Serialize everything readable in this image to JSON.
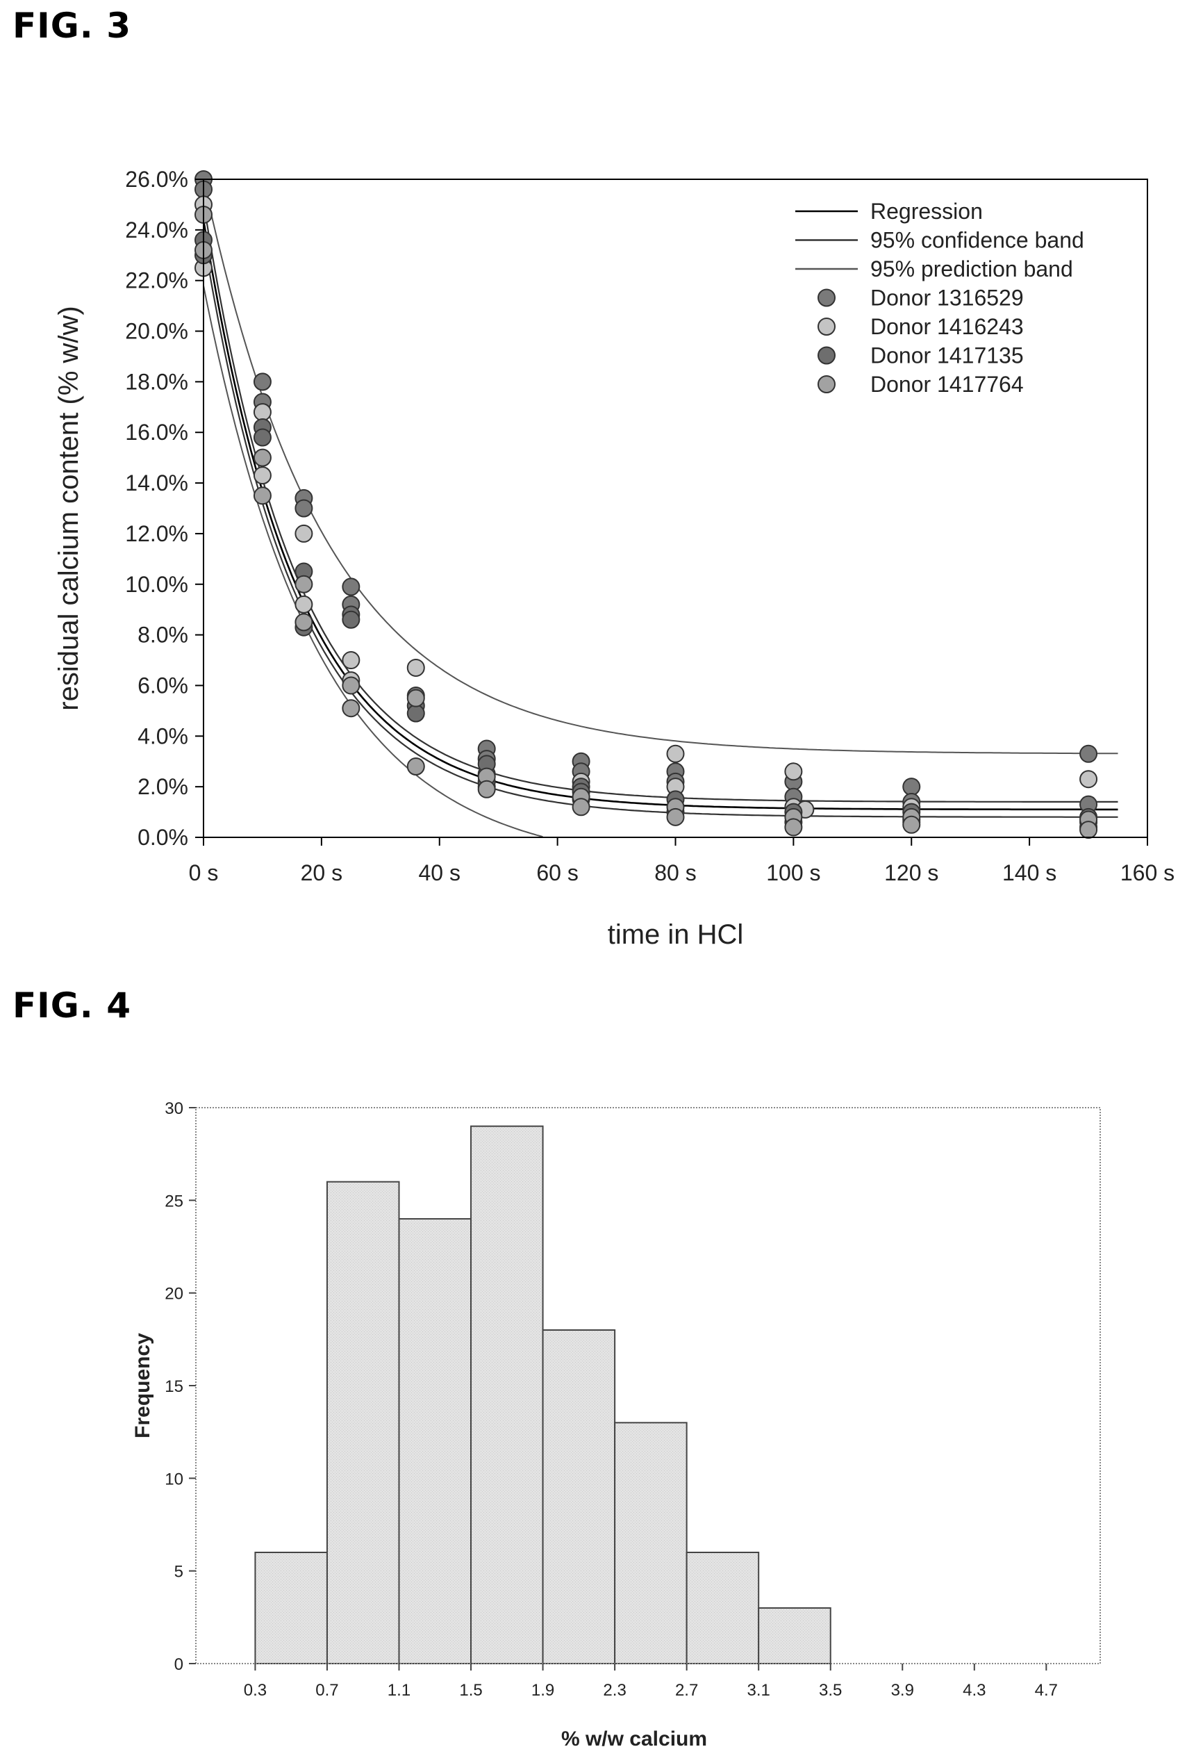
{
  "figures": {
    "fig3_label": "FIG. 3",
    "fig4_label": "FIG. 4"
  },
  "chart_data": [
    {
      "type": "scatter",
      "xlabel": "time in HCl",
      "ylabel": "residual calcium content (% w/w)",
      "xlim": [
        0,
        160
      ],
      "ylim": [
        0,
        26
      ],
      "x_ticks": [
        0,
        20,
        40,
        60,
        80,
        100,
        120,
        140,
        160
      ],
      "x_tick_labels": [
        "0 s",
        "20 s",
        "40 s",
        "60 s",
        "80 s",
        "100 s",
        "120 s",
        "140 s",
        "160 s"
      ],
      "y_ticks": [
        0,
        2,
        4,
        6,
        8,
        10,
        12,
        14,
        16,
        18,
        20,
        22,
        24,
        26
      ],
      "y_tick_labels": [
        "0.0%",
        "2.0%",
        "4.0%",
        "6.0%",
        "8.0%",
        "10.0%",
        "12.0%",
        "14.0%",
        "16.0%",
        "18.0%",
        "20.0%",
        "22.0%",
        "24.0%",
        "26.0%"
      ],
      "grid": false,
      "legend_position": "top-right",
      "legend_lines": [
        {
          "name": "Regression",
          "color": "#000000"
        },
        {
          "name": "95% confidence band",
          "color": "#333333"
        },
        {
          "name": "95% prediction band",
          "color": "#555555"
        }
      ],
      "curves": {
        "regression": {
          "a": 23.3,
          "k": 0.0617,
          "c": 1.1
        },
        "confidence_upper": {
          "a": 23.7,
          "k": 0.062,
          "c": 1.4
        },
        "confidence_lower": {
          "a": 22.9,
          "k": 0.0613,
          "c": 0.8
        },
        "prediction_upper": {
          "a": 22.7,
          "k": 0.0475,
          "c": 3.3
        },
        "prediction_lower": {
          "a": 23.0,
          "k": 0.051,
          "c": -1.2
        },
        "x_max": 155
      },
      "series": [
        {
          "name": "Donor 1316529",
          "color": "#7a7a7a",
          "points": [
            [
              0,
              26.0
            ],
            [
              0,
              25.6
            ],
            [
              10,
              18.0
            ],
            [
              10,
              17.2
            ],
            [
              17,
              13.4
            ],
            [
              17,
              13.0
            ],
            [
              25,
              9.9
            ],
            [
              25,
              9.2
            ],
            [
              36,
              5.6
            ],
            [
              48,
              3.5
            ],
            [
              48,
              3.1
            ],
            [
              64,
              3.0
            ],
            [
              64,
              2.6
            ],
            [
              80,
              2.6
            ],
            [
              80,
              2.2
            ],
            [
              100,
              2.2
            ],
            [
              100,
              1.6
            ],
            [
              120,
              2.0
            ],
            [
              120,
              1.4
            ],
            [
              150,
              3.3
            ],
            [
              150,
              1.3
            ]
          ]
        },
        {
          "name": "Donor 1416243",
          "color": "#c4c4c4",
          "points": [
            [
              0,
              25.0
            ],
            [
              0,
              22.5
            ],
            [
              10,
              16.8
            ],
            [
              10,
              14.3
            ],
            [
              17,
              12.0
            ],
            [
              17,
              9.2
            ],
            [
              25,
              7.0
            ],
            [
              25,
              6.2
            ],
            [
              36,
              6.7
            ],
            [
              48,
              2.5
            ],
            [
              48,
              2.0
            ],
            [
              64,
              2.2
            ],
            [
              64,
              1.5
            ],
            [
              80,
              3.3
            ],
            [
              80,
              2.0
            ],
            [
              100,
              2.6
            ],
            [
              100,
              1.2
            ],
            [
              102,
              1.1
            ],
            [
              120,
              1.2
            ],
            [
              120,
              0.7
            ],
            [
              150,
              2.3
            ],
            [
              150,
              0.6
            ]
          ]
        },
        {
          "name": "Donor 1417135",
          "color": "#6e6e6e",
          "points": [
            [
              0,
              23.6
            ],
            [
              0,
              23.0
            ],
            [
              10,
              16.2
            ],
            [
              10,
              15.8
            ],
            [
              17,
              10.5
            ],
            [
              17,
              8.3
            ],
            [
              25,
              8.8
            ],
            [
              25,
              8.6
            ],
            [
              36,
              5.2
            ],
            [
              36,
              4.9
            ],
            [
              48,
              2.9
            ],
            [
              48,
              2.2
            ],
            [
              64,
              2.0
            ],
            [
              64,
              1.8
            ],
            [
              80,
              1.5
            ],
            [
              80,
              1.0
            ],
            [
              100,
              1.0
            ],
            [
              100,
              0.6
            ],
            [
              120,
              1.0
            ],
            [
              120,
              0.6
            ],
            [
              150,
              0.8
            ],
            [
              150,
              0.4
            ]
          ]
        },
        {
          "name": "Donor 1417764",
          "color": "#a2a2a2",
          "points": [
            [
              0,
              24.6
            ],
            [
              0,
              23.2
            ],
            [
              10,
              15.0
            ],
            [
              10,
              13.5
            ],
            [
              17,
              10.0
            ],
            [
              17,
              8.5
            ],
            [
              25,
              6.0
            ],
            [
              25,
              5.1
            ],
            [
              36,
              5.5
            ],
            [
              36,
              2.8
            ],
            [
              48,
              2.4
            ],
            [
              48,
              1.9
            ],
            [
              64,
              1.6
            ],
            [
              64,
              1.2
            ],
            [
              80,
              1.2
            ],
            [
              80,
              0.8
            ],
            [
              100,
              0.8
            ],
            [
              100,
              0.4
            ],
            [
              120,
              0.8
            ],
            [
              120,
              0.5
            ],
            [
              150,
              0.7
            ],
            [
              150,
              0.3
            ]
          ]
        }
      ]
    },
    {
      "type": "bar",
      "xlabel": "% w/w calcium",
      "ylabel": "Frequency",
      "ylim": [
        0,
        30
      ],
      "y_ticks": [
        0,
        5,
        10,
        15,
        20,
        25,
        30
      ],
      "x_tick_labels": [
        "0.3",
        "0.7",
        "1.1",
        "1.5",
        "1.9",
        "2.3",
        "2.7",
        "3.1",
        "3.5",
        "3.9",
        "4.3",
        "4.7"
      ],
      "bin_edges": [
        0.3,
        0.7,
        1.1,
        1.5,
        1.9,
        2.3,
        2.7,
        3.1,
        3.5
      ],
      "values": [
        6,
        26,
        24,
        29,
        18,
        13,
        6,
        3
      ],
      "xlim": [
        -0.03,
        5.0
      ],
      "bar_color": "#e1e1e1",
      "grid": false
    }
  ]
}
